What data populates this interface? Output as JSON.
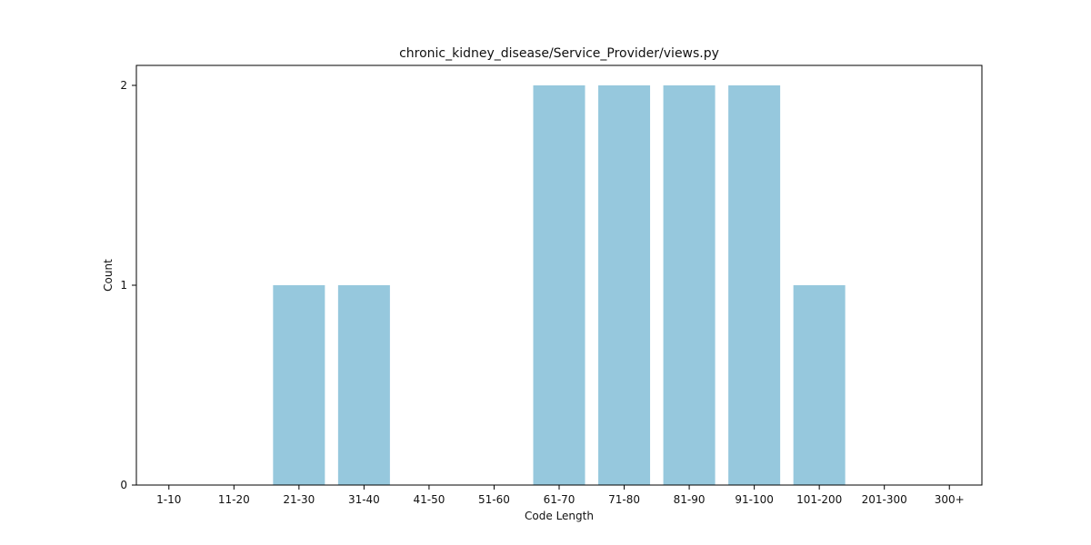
{
  "chart_data": {
    "type": "bar",
    "title": "chronic_kidney_disease/Service_Provider/views.py",
    "xlabel": "Code Length",
    "ylabel": "Count",
    "categories": [
      "1-10",
      "11-20",
      "21-30",
      "31-40",
      "41-50",
      "51-60",
      "61-70",
      "71-80",
      "81-90",
      "91-100",
      "101-200",
      "201-300",
      "300+"
    ],
    "values": [
      0,
      0,
      1,
      1,
      0,
      0,
      2,
      2,
      2,
      2,
      1,
      0,
      0
    ],
    "yticks": [
      "0",
      "1",
      "2"
    ],
    "ylim": [
      0,
      2.1
    ],
    "grid": false,
    "bar_color": "#96c8dd"
  }
}
